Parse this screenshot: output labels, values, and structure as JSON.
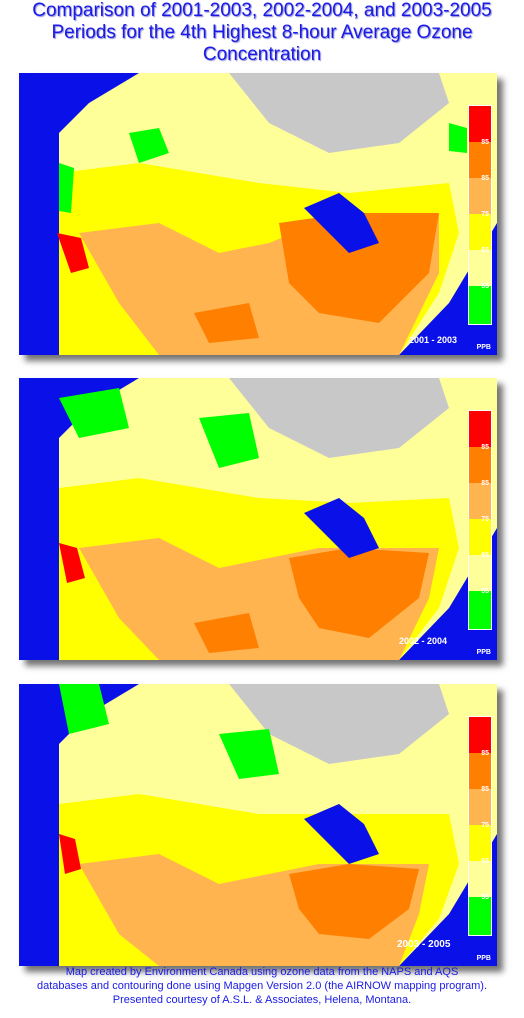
{
  "title": {
    "line1": "Comparison of 2001-2003, 2002-2004, and 2003-2005",
    "line2": "Periods for the 4th Highest 8-hour Average Ozone",
    "line3": "Concentration"
  },
  "legend": {
    "unit": "PPB",
    "ticks": [
      "85",
      "85",
      "75",
      "65",
      "55"
    ],
    "colors": [
      "#ff0000",
      "#ff8000",
      "#ffb450",
      "#ffff00",
      "#ffff99",
      "#00ff00"
    ]
  },
  "maps": [
    {
      "period": "2001 - 2003"
    },
    {
      "period": "2002 - 2004"
    },
    {
      "period": "2003 - 2005"
    }
  ],
  "colors": {
    "ocean": "#0a10e8",
    "nodata": "#c8c8c8",
    "light_yellow": "#ffff99",
    "yellow": "#ffff00",
    "light_orange": "#ffb450",
    "orange": "#ff8000",
    "red": "#ff0000",
    "green": "#00ff00"
  },
  "footer": {
    "line1": "Map created by Environment Canada using ozone data from the NAPS and AQS",
    "line2": "databases and contouring done using Mapgen Version 2.0  (the AIRNOW mapping program).",
    "line3": "Presented courtesy of A.S.L. & Associates, Helena, Montana."
  }
}
